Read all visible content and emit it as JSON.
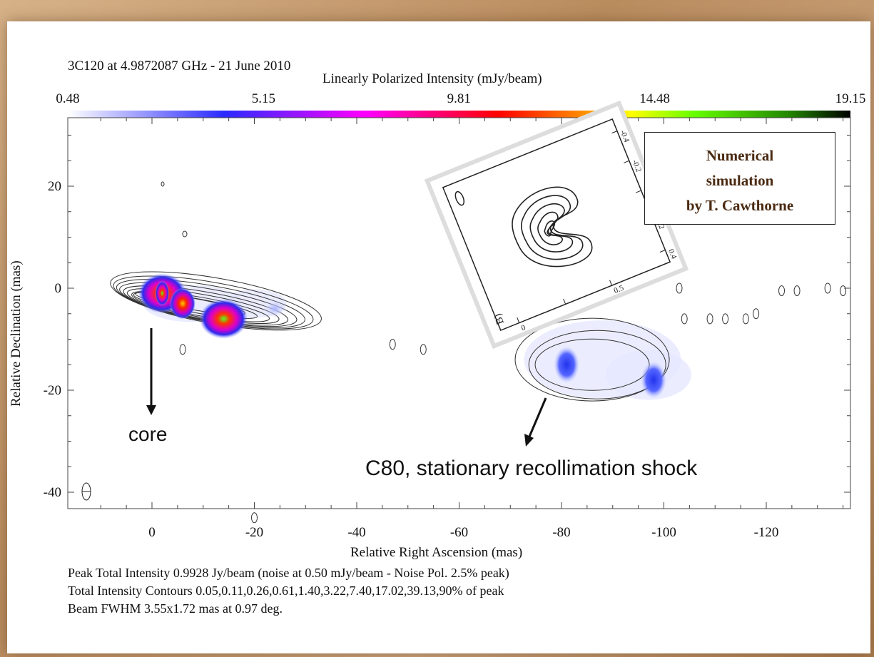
{
  "header": {
    "title": "3C120 at 4.9872087 GHz - 21 June 2010",
    "colorbar_label": "Linearly Polarized Intensity (mJy/beam)"
  },
  "colors": {
    "colorbar_stops": [
      "#ffffff",
      "#2a2aff",
      "#ff00ff",
      "#ff0000",
      "#ffff00",
      "#66ff00",
      "#000000"
    ],
    "contour": "#222222",
    "annotation_text": "#4a2a12"
  },
  "chart_data": {
    "type": "heatmap",
    "title": "3C120 at 4.9872087 GHz - 21 June 2010",
    "xlabel": "Relative Right Ascension (mas)",
    "ylabel": "Relative Declination (mas)",
    "xlim": [
      15,
      -137
    ],
    "ylim": [
      -43,
      33
    ],
    "xticks": [
      0,
      -20,
      -40,
      -60,
      -80,
      -100,
      -120
    ],
    "yticks": [
      20,
      0,
      -20,
      -40
    ],
    "colorbar": {
      "label": "Linearly Polarized Intensity (mJy/beam)",
      "ticks": [
        0.48,
        5.15,
        9.81,
        14.48,
        19.15
      ],
      "range": [
        0.48,
        19.15
      ]
    },
    "polarized_knots": [
      {
        "x": -2,
        "y": -1,
        "intensity": 16
      },
      {
        "x": -6,
        "y": -3,
        "intensity": 11
      },
      {
        "x": -14,
        "y": -6,
        "intensity": 18
      },
      {
        "x": -24,
        "y": -4,
        "intensity": 2
      },
      {
        "x": -81,
        "y": -15,
        "intensity": 6
      },
      {
        "x": -98,
        "y": -18,
        "intensity": 7
      }
    ],
    "annotations": [
      {
        "label": "core",
        "x": 0,
        "y": -25
      },
      {
        "label": "C80, stationary recollimation shock",
        "x": -73,
        "y": -32
      }
    ],
    "inset": {
      "panel_label": "B)",
      "tick_labels": [
        "-0.4",
        "-0.2",
        "0",
        "0.2",
        "0.4",
        "0",
        "0.5"
      ],
      "annotation": "Numerical simulation by T. Cawthorne"
    }
  },
  "labels": {
    "core": "core",
    "c80": "C80, stationary recollimation shock",
    "sim_line1": "Numerical",
    "sim_line2": "simulation",
    "sim_line3": "by T. Cawthorne",
    "inset_panel": "B)"
  },
  "captions": {
    "peak": "Peak Total Intensity 0.9928 Jy/beam (noise at 0.50 mJy/beam - Noise Pol. 2.5% peak)",
    "contours": "Total Intensity Contours 0.05,0.11,0.26,0.61,1.40,3.22,7.40,17.02,39.13,90% of peak",
    "beam": "Beam FWHM 3.55x1.72 mas at 0.97 deg."
  }
}
